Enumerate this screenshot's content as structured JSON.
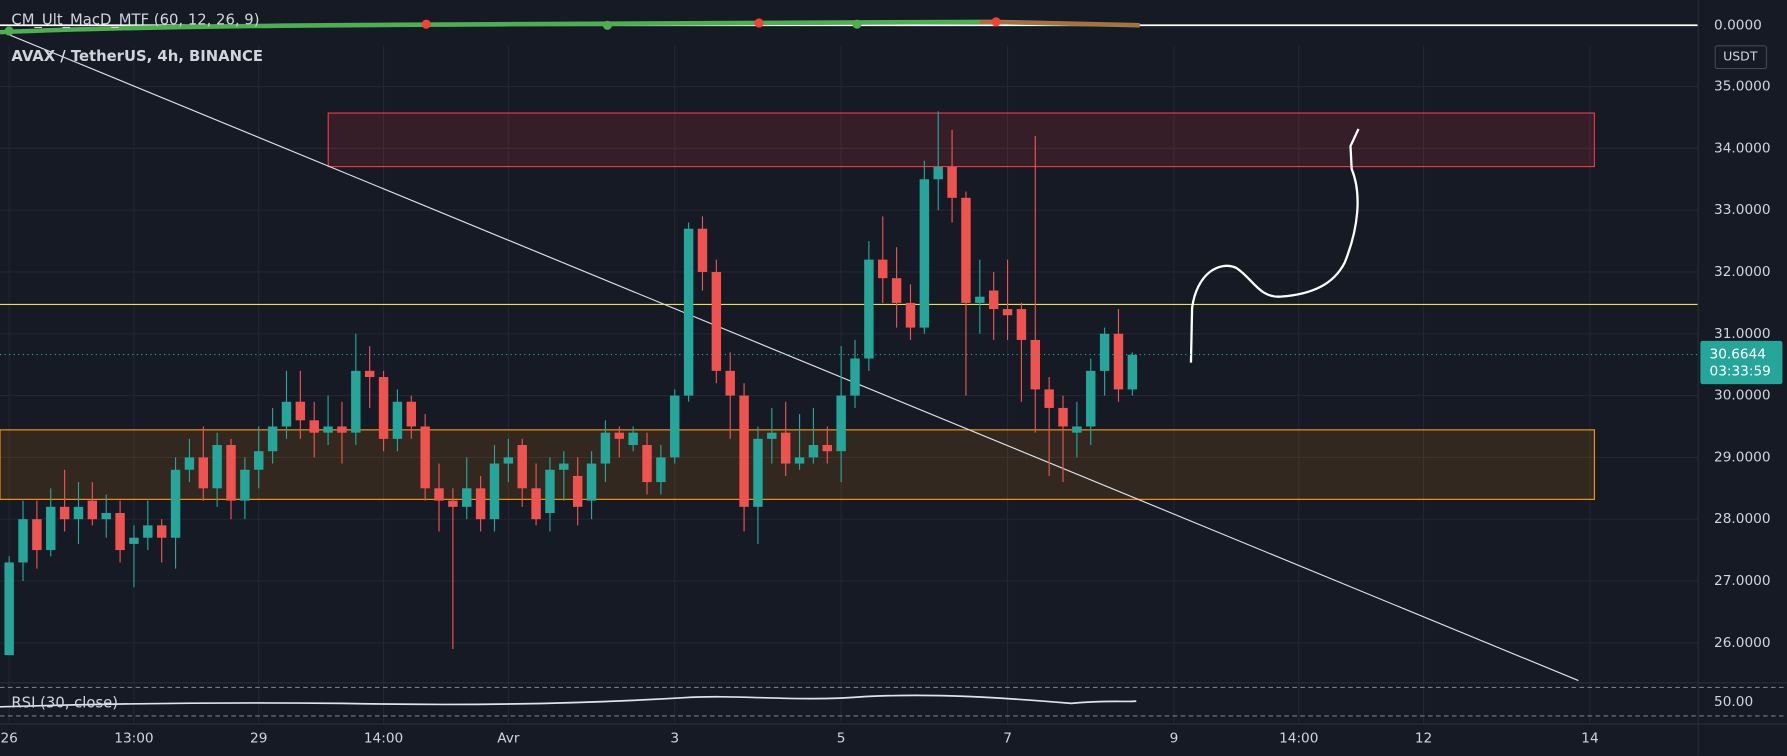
{
  "chart_data": {
    "type": "candlestick",
    "title": "AVAX / TetherUS, 4h, BINANCE",
    "currency": "USDT",
    "last_price": 30.6644,
    "countdown": "03:33:59",
    "indicators": [
      {
        "name": "CM_Ult_MacD_MTF (60, 12, 26, 9)",
        "level_label": "0.0000"
      },
      {
        "name": "RSI (30, close)",
        "level_label": "50.00"
      }
    ],
    "up_color": "#26a69a",
    "down_color": "#ef5350",
    "x": [
      0,
      1,
      2,
      3,
      4,
      5,
      6,
      7,
      8,
      9,
      10,
      11,
      12,
      13,
      14,
      15,
      16,
      17,
      18,
      19,
      20,
      21,
      22,
      23,
      24,
      25,
      26,
      27,
      28,
      29,
      30,
      31,
      32,
      33,
      34,
      35,
      36,
      37,
      38,
      39,
      40,
      41,
      42,
      43,
      44,
      45,
      46,
      47,
      48,
      49,
      50,
      51,
      52,
      53,
      54,
      55,
      56,
      57,
      58,
      59,
      60,
      61,
      62,
      63,
      64,
      65,
      66,
      67,
      68,
      69,
      70,
      71,
      72,
      73,
      74,
      75,
      76,
      77,
      78,
      79,
      80,
      81
    ],
    "open": [
      25.8,
      27.3,
      28.0,
      27.5,
      28.2,
      28.0,
      28.3,
      28.0,
      28.1,
      27.6,
      27.7,
      27.9,
      27.7,
      28.8,
      29.0,
      28.5,
      29.2,
      28.3,
      28.8,
      29.1,
      29.5,
      29.9,
      29.6,
      29.4,
      29.5,
      29.4,
      30.4,
      30.3,
      29.3,
      29.9,
      29.5,
      28.5,
      28.3,
      28.2,
      28.5,
      28.0,
      28.9,
      29.2,
      28.5,
      28.1,
      28.8,
      28.7,
      28.3,
      28.9,
      29.4,
      29.2,
      29.2,
      28.6,
      29.0,
      30.0,
      32.7,
      32.0,
      30.4,
      30.0,
      28.2,
      29.3,
      29.4,
      28.9,
      29.0,
      29.2,
      29.1,
      30.0,
      30.6,
      32.2,
      31.9,
      31.5,
      31.1,
      33.5,
      33.7,
      33.2,
      31.5,
      31.7,
      31.4,
      31.4,
      30.9,
      30.1,
      29.8,
      29.4,
      29.5,
      30.4,
      31.0,
      30.1
    ],
    "high": [
      27.4,
      28.3,
      28.3,
      28.5,
      28.8,
      28.6,
      28.6,
      28.4,
      28.3,
      27.9,
      28.3,
      28.0,
      29.0,
      29.3,
      29.5,
      29.4,
      29.3,
      29.0,
      29.5,
      29.8,
      30.4,
      30.4,
      29.9,
      30.0,
      29.9,
      31.0,
      30.8,
      30.4,
      30.1,
      30.0,
      29.7,
      28.9,
      28.5,
      29.0,
      28.7,
      29.2,
      29.3,
      29.3,
      28.9,
      29.0,
      29.1,
      29.0,
      29.1,
      29.6,
      29.5,
      29.5,
      29.4,
      29.2,
      30.1,
      32.8,
      32.9,
      32.2,
      30.7,
      30.2,
      29.5,
      29.8,
      29.9,
      29.7,
      29.8,
      29.5,
      30.8,
      30.9,
      32.5,
      32.9,
      32.4,
      31.8,
      33.8,
      34.6,
      34.3,
      33.3,
      32.2,
      32.0,
      32.2,
      31.5,
      34.2,
      30.3,
      30.0,
      29.9,
      30.6,
      31.1,
      31.4,
      30.7
    ],
    "low": [
      25.8,
      27.0,
      27.2,
      27.4,
      27.8,
      27.6,
      27.9,
      27.7,
      27.3,
      26.9,
      27.5,
      27.3,
      27.2,
      28.6,
      28.3,
      28.2,
      28.0,
      28.0,
      28.5,
      28.9,
      29.3,
      29.3,
      29.0,
      29.2,
      28.9,
      29.2,
      29.8,
      29.1,
      29.1,
      29.3,
      28.3,
      27.8,
      25.9,
      28.0,
      27.8,
      27.8,
      28.6,
      28.2,
      27.9,
      27.8,
      28.3,
      27.9,
      28.0,
      28.6,
      29.0,
      29.1,
      28.4,
      28.4,
      28.9,
      29.9,
      31.7,
      30.2,
      29.3,
      27.8,
      27.6,
      28.9,
      28.7,
      28.8,
      28.9,
      28.9,
      28.6,
      29.8,
      30.4,
      31.5,
      31.1,
      30.9,
      31.0,
      33.0,
      32.8,
      30.0,
      31.0,
      30.9,
      30.9,
      29.9,
      29.4,
      28.7,
      28.6,
      29.0,
      29.2,
      30.0,
      29.9,
      30.0
    ],
    "close": [
      27.3,
      28.0,
      27.5,
      28.2,
      28.0,
      28.2,
      28.0,
      28.1,
      27.5,
      27.7,
      27.9,
      27.7,
      28.8,
      29.0,
      28.5,
      29.2,
      28.3,
      28.8,
      29.1,
      29.5,
      29.9,
      29.6,
      29.4,
      29.5,
      29.4,
      30.4,
      30.3,
      29.3,
      29.9,
      29.5,
      28.5,
      28.3,
      28.2,
      28.5,
      28.0,
      28.9,
      29.0,
      28.5,
      28.0,
      28.8,
      28.9,
      28.2,
      28.9,
      29.4,
      29.3,
      29.4,
      28.6,
      29.0,
      30.0,
      32.7,
      32.0,
      30.4,
      30.0,
      28.2,
      29.3,
      29.4,
      28.9,
      29.0,
      29.2,
      29.1,
      30.0,
      30.6,
      32.2,
      31.9,
      31.5,
      31.1,
      33.5,
      33.7,
      33.2,
      31.5,
      31.6,
      31.4,
      31.3,
      30.9,
      30.1,
      29.8,
      29.5,
      29.5,
      30.4,
      31.0,
      30.1,
      30.66
    ],
    "xlim": [
      -0.66,
      121.8
    ],
    "xticks": [
      {
        "value": 0,
        "label": "26"
      },
      {
        "value": 9,
        "label": "13:00"
      },
      {
        "value": 18,
        "label": "29"
      },
      {
        "value": 27,
        "label": "14:00"
      },
      {
        "value": 36,
        "label": "Avr"
      },
      {
        "value": 48,
        "label": "3"
      },
      {
        "value": 60,
        "label": "5"
      },
      {
        "value": 72,
        "label": "7"
      },
      {
        "value": 84,
        "label": "9"
      },
      {
        "value": 93,
        "label": "14:00"
      },
      {
        "value": 102,
        "label": "12"
      },
      {
        "value": 114,
        "label": "14"
      }
    ],
    "ylim": [
      25.37,
      35.66
    ],
    "yticks": [
      {
        "value": 26,
        "label": "26.0000"
      },
      {
        "value": 27,
        "label": "27.0000"
      },
      {
        "value": 28,
        "label": "28.0000"
      },
      {
        "value": 29,
        "label": "29.0000"
      },
      {
        "value": 30,
        "label": "30.0000"
      },
      {
        "value": 31,
        "label": "31.0000"
      },
      {
        "value": 32,
        "label": "32.0000"
      },
      {
        "value": 33,
        "label": "33.0000"
      },
      {
        "value": 34,
        "label": "34.0000"
      },
      {
        "value": 35,
        "label": "35.0000"
      }
    ],
    "grid": true
  }
}
